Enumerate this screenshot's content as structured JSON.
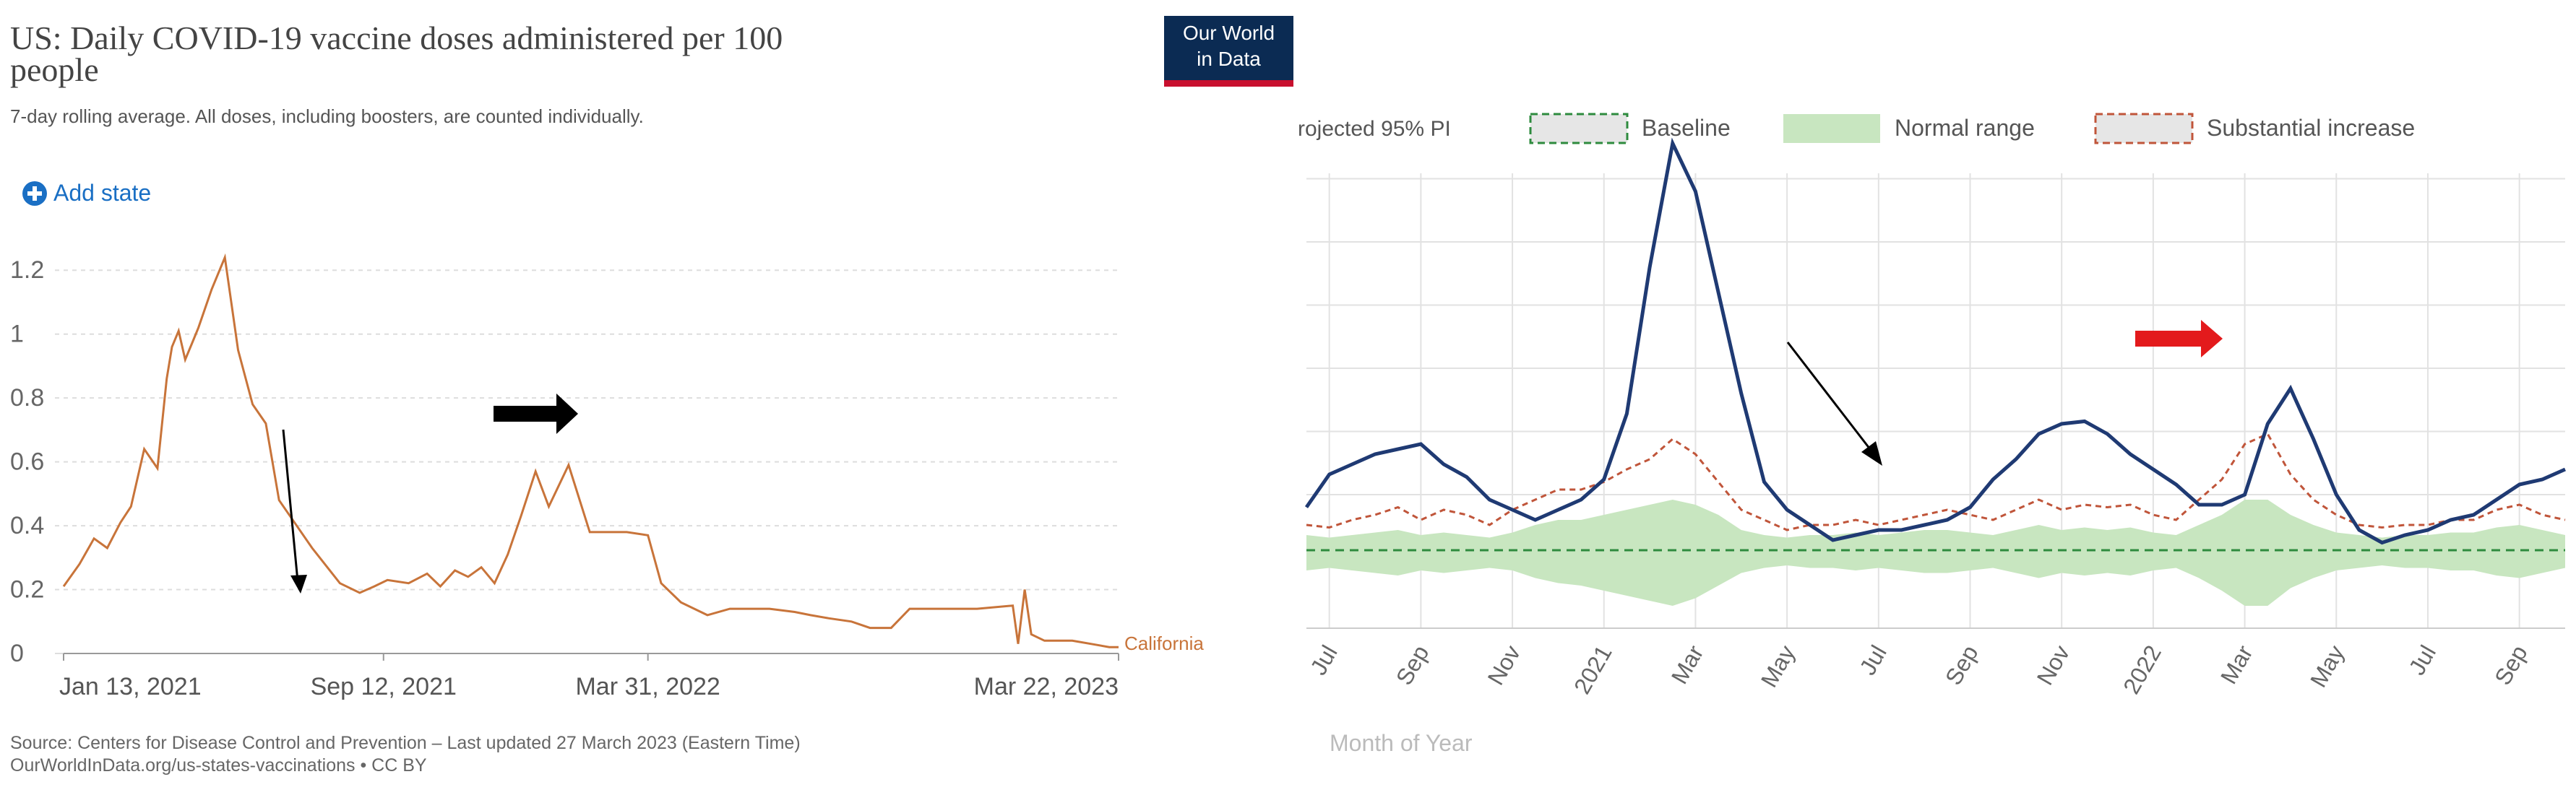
{
  "left_panel": {
    "title": "US: Daily COVID-19 vaccine doses administered per 100 people",
    "title_line1": "US: Daily COVID-19 vaccine doses administered per 100",
    "title_line2": "people",
    "subtitle": "7-day rolling average. All doses, including boosters, are counted individually.",
    "add_button_label": "Add state",
    "logo_line1": "Our World",
    "logo_line2": "in Data",
    "source_line1": "Source: Centers for Disease Control and Prevention – Last updated 27 March 2023 (Eastern Time)",
    "source_line2": "OurWorldInData.org/us-states-vaccinations • CC BY"
  },
  "right_panel": {
    "legend_cut_label": "rojected 95% PI",
    "xlabel": "Month of Year"
  },
  "colors": {
    "california_line": "#c8743a",
    "black_arrow": "#000000",
    "red_arrow": "#e31a1c",
    "observed_line": "#1f3a73",
    "substantial_dash": "#c0553a",
    "baseline_dash": "#2e8b3e",
    "normal_range_fill": "#c8e6c0",
    "owid_blue": "#0b2b53",
    "add_button_blue": "#1a6fc4"
  },
  "chart_data": [
    {
      "type": "line",
      "title": "US: Daily COVID-19 vaccine doses administered per 100 people",
      "subtitle": "7-day rolling average. All doses, including boosters, are counted individually.",
      "xlabel": "",
      "ylabel": "",
      "ylim": [
        0,
        1.3
      ],
      "yticks": [
        0,
        0.2,
        0.4,
        0.6,
        0.8,
        1,
        1.2
      ],
      "ytick_labels": [
        "0",
        "0.2",
        "0.4",
        "0.6",
        "0.8",
        "1",
        "1.2"
      ],
      "xlim": [
        "2021-01-13",
        "2023-03-22"
      ],
      "xticks": [
        "2021-01-13",
        "2021-09-12",
        "2022-03-31",
        "2023-03-22"
      ],
      "xtick_labels": [
        "Jan 13, 2021",
        "Sep 12, 2021",
        "Mar 31, 2022",
        "Mar 22, 2023"
      ],
      "grid": true,
      "series": [
        {
          "name": "California",
          "color": "#c8743a",
          "x": [
            "2021-01-13",
            "2021-01-25",
            "2021-02-05",
            "2021-02-15",
            "2021-02-25",
            "2021-03-05",
            "2021-03-15",
            "2021-03-25",
            "2021-04-01",
            "2021-04-05",
            "2021-04-10",
            "2021-04-15",
            "2021-04-20",
            "2021-04-25",
            "2021-05-05",
            "2021-05-15",
            "2021-05-25",
            "2021-06-05",
            "2021-06-15",
            "2021-06-25",
            "2021-07-05",
            "2021-07-20",
            "2021-08-10",
            "2021-08-25",
            "2021-09-05",
            "2021-09-15",
            "2021-10-01",
            "2021-10-15",
            "2021-10-25",
            "2021-11-05",
            "2021-11-15",
            "2021-11-25",
            "2021-12-05",
            "2021-12-15",
            "2021-12-25",
            "2022-01-05",
            "2022-01-15",
            "2022-01-30",
            "2022-02-15",
            "2022-03-01",
            "2022-03-15",
            "2022-03-31",
            "2022-04-10",
            "2022-04-25",
            "2022-05-15",
            "2022-06-01",
            "2022-07-01",
            "2022-07-20",
            "2022-08-01",
            "2022-08-15",
            "2022-09-01",
            "2022-09-15",
            "2022-10-01",
            "2022-10-15",
            "2022-11-05",
            "2022-12-05",
            "2023-01-01",
            "2023-01-05",
            "2023-01-10",
            "2023-01-15",
            "2023-01-25",
            "2023-02-05",
            "2023-02-15",
            "2023-03-01",
            "2023-03-15",
            "2023-03-22"
          ],
          "values": [
            0.21,
            0.28,
            0.36,
            0.33,
            0.41,
            0.46,
            0.64,
            0.58,
            0.86,
            0.96,
            1.01,
            0.92,
            0.97,
            1.02,
            1.14,
            1.24,
            0.95,
            0.78,
            0.72,
            0.48,
            0.42,
            0.33,
            0.22,
            0.19,
            0.21,
            0.23,
            0.22,
            0.25,
            0.21,
            0.26,
            0.24,
            0.27,
            0.22,
            0.31,
            0.43,
            0.57,
            0.46,
            0.59,
            0.38,
            0.38,
            0.38,
            0.37,
            0.22,
            0.16,
            0.12,
            0.14,
            0.14,
            0.13,
            0.12,
            0.11,
            0.1,
            0.08,
            0.08,
            0.14,
            0.14,
            0.14,
            0.15,
            0.03,
            0.2,
            0.06,
            0.04,
            0.04,
            0.04,
            0.03,
            0.02,
            0.02
          ]
        }
      ]
    },
    {
      "type": "line",
      "title": "",
      "xlabel": "Month of Year",
      "ylabel": "",
      "xtick_labels": [
        "Jul",
        "Sep",
        "Nov",
        "2021",
        "Mar",
        "May",
        "Jul",
        "Sep",
        "Nov",
        "2022",
        "Mar",
        "May",
        "Jul",
        "Sep"
      ],
      "grid": true,
      "legend": {
        "placement": "top",
        "entries": [
          "Baseline",
          "Normal range",
          "Substantial increase"
        ]
      },
      "x_months": [
        0,
        0.5,
        1,
        1.5,
        2,
        2.5,
        3,
        3.5,
        4,
        4.5,
        5,
        5.5,
        6,
        6.5,
        7,
        7.5,
        8,
        8.5,
        9,
        9.5,
        10,
        10.5,
        11,
        11.5,
        12,
        12.5,
        13,
        13.5,
        14,
        14.5,
        15,
        15.5,
        16,
        16.5,
        17,
        17.5,
        18,
        18.5,
        19,
        19.5,
        20,
        20.5,
        21,
        21.5,
        22,
        22.5,
        23,
        23.5,
        24,
        24.5,
        25,
        25.5,
        26,
        26.5,
        27,
        27.5
      ],
      "series": [
        {
          "name": "observed",
          "color": "#1f3a73",
          "values": [
            0.45,
            0.58,
            0.62,
            0.66,
            0.68,
            0.7,
            0.62,
            0.57,
            0.48,
            0.44,
            0.4,
            0.44,
            0.48,
            0.56,
            0.82,
            1.4,
            1.89,
            1.7,
            1.3,
            0.9,
            0.55,
            0.44,
            0.38,
            0.32,
            0.34,
            0.36,
            0.36,
            0.38,
            0.4,
            0.45,
            0.56,
            0.64,
            0.74,
            0.78,
            0.79,
            0.74,
            0.66,
            0.6,
            0.54,
            0.46,
            0.46,
            0.5,
            0.78,
            0.92,
            0.72,
            0.5,
            0.36,
            0.31,
            0.34,
            0.36,
            0.4,
            0.42,
            0.48,
            0.54,
            0.56,
            0.6
          ]
        },
        {
          "name": "Substantial increase",
          "color": "#c0553a",
          "values": [
            0.38,
            0.37,
            0.4,
            0.42,
            0.45,
            0.4,
            0.44,
            0.42,
            0.38,
            0.44,
            0.48,
            0.52,
            0.52,
            0.55,
            0.6,
            0.64,
            0.72,
            0.66,
            0.55,
            0.44,
            0.4,
            0.36,
            0.38,
            0.38,
            0.4,
            0.38,
            0.4,
            0.42,
            0.44,
            0.42,
            0.4,
            0.44,
            0.48,
            0.44,
            0.46,
            0.45,
            0.46,
            0.42,
            0.4,
            0.48,
            0.56,
            0.7,
            0.74,
            0.58,
            0.48,
            0.42,
            0.38,
            0.37,
            0.38,
            0.38,
            0.4,
            0.4,
            0.44,
            0.46,
            0.42,
            0.4
          ]
        },
        {
          "name": "Baseline",
          "color": "#2e8b3e",
          "values": [
            0.28,
            0.28,
            0.28,
            0.28,
            0.28,
            0.28,
            0.28,
            0.28,
            0.28,
            0.28,
            0.28,
            0.28,
            0.28,
            0.28,
            0.28,
            0.28,
            0.28,
            0.28,
            0.28,
            0.28,
            0.28,
            0.28,
            0.28,
            0.28,
            0.28,
            0.28,
            0.28,
            0.28,
            0.28,
            0.28,
            0.28,
            0.28,
            0.28,
            0.28,
            0.28,
            0.28,
            0.28,
            0.28,
            0.28,
            0.28,
            0.28,
            0.28,
            0.28,
            0.28,
            0.28,
            0.28,
            0.28,
            0.28,
            0.28,
            0.28,
            0.28,
            0.28,
            0.28,
            0.28,
            0.28,
            0.28
          ]
        },
        {
          "name": "Normal range",
          "color": "#c8e6c0",
          "upper": [
            0.34,
            0.33,
            0.34,
            0.35,
            0.36,
            0.34,
            0.35,
            0.34,
            0.33,
            0.35,
            0.38,
            0.4,
            0.4,
            0.42,
            0.44,
            0.46,
            0.48,
            0.46,
            0.42,
            0.36,
            0.34,
            0.33,
            0.34,
            0.34,
            0.35,
            0.34,
            0.35,
            0.36,
            0.36,
            0.35,
            0.34,
            0.36,
            0.38,
            0.36,
            0.37,
            0.36,
            0.37,
            0.35,
            0.34,
            0.38,
            0.42,
            0.48,
            0.48,
            0.42,
            0.38,
            0.35,
            0.34,
            0.33,
            0.34,
            0.34,
            0.35,
            0.35,
            0.37,
            0.38,
            0.36,
            0.34
          ],
          "lower": [
            0.2,
            0.21,
            0.2,
            0.19,
            0.18,
            0.2,
            0.19,
            0.2,
            0.21,
            0.2,
            0.17,
            0.15,
            0.14,
            0.12,
            0.1,
            0.08,
            0.06,
            0.09,
            0.14,
            0.19,
            0.21,
            0.22,
            0.21,
            0.21,
            0.2,
            0.21,
            0.2,
            0.19,
            0.19,
            0.2,
            0.21,
            0.19,
            0.17,
            0.19,
            0.18,
            0.19,
            0.18,
            0.2,
            0.21,
            0.17,
            0.12,
            0.06,
            0.06,
            0.13,
            0.17,
            0.2,
            0.21,
            0.22,
            0.21,
            0.21,
            0.2,
            0.2,
            0.18,
            0.17,
            0.19,
            0.21
          ]
        }
      ]
    }
  ],
  "annotations": {
    "left_black_arrow_direction": "right",
    "left_pointer_arrow_direction": "down",
    "right_red_arrow_direction": "right",
    "right_pointer_arrow_direction": "down-right"
  }
}
